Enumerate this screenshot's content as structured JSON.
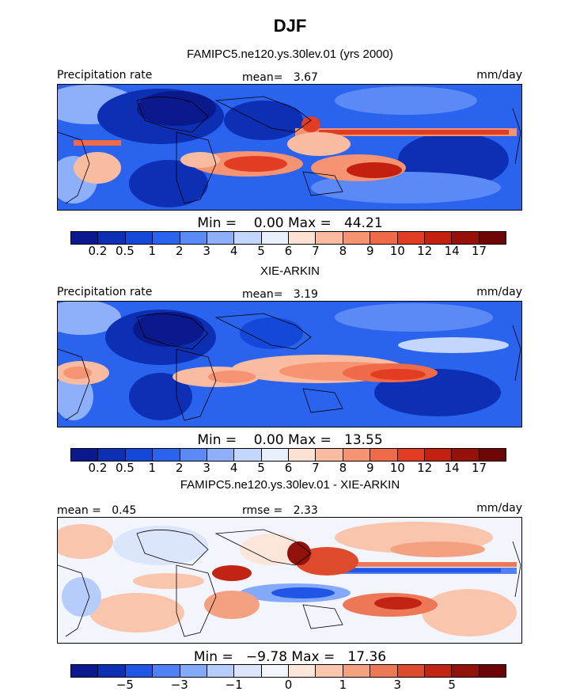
{
  "figure": {
    "title": "DJF"
  },
  "colors": {
    "seq_levels": [
      "#0a1a8c",
      "#0d2fb4",
      "#1448d8",
      "#2a63ee",
      "#5b8af6",
      "#8eb0fb",
      "#c3d6fd",
      "#e8f0fe",
      "#fde2d3",
      "#f9bca0",
      "#f59373",
      "#ee6a48",
      "#e23d22",
      "#c4200f",
      "#95110a",
      "#6e0606"
    ],
    "div_levels": [
      "#0a1a8c",
      "#0d2fb4",
      "#1f56e6",
      "#4f80f5",
      "#85a9fa",
      "#b6cdfc",
      "#dbe6fd",
      "#f2f5fc",
      "#fce6da",
      "#f9c6ad",
      "#f4a182",
      "#ec7858",
      "#de4a2c",
      "#c12412",
      "#92110a",
      "#6b0505"
    ]
  },
  "panels": [
    {
      "title": "FAMIPC5.ne120.ys.30lev.01 (yrs 2000)",
      "left_label": "Precipitation rate",
      "stat_text": "mean=   3.67",
      "units": "mm/day",
      "minmax_text": "Min =    0.00 Max =   44.21",
      "colorbar_ticks": [
        "0.2",
        "0.5",
        "1",
        "2",
        "3",
        "4",
        "5",
        "6",
        "7",
        "8",
        "9",
        "10",
        "12",
        "14",
        "17"
      ]
    },
    {
      "title": "XIE-ARKIN",
      "left_label": "Precipitation rate",
      "stat_text": "mean=   3.19",
      "units": "mm/day",
      "minmax_text": "Min =    0.00 Max =   13.55",
      "colorbar_ticks": [
        "0.2",
        "0.5",
        "1",
        "2",
        "3",
        "4",
        "5",
        "6",
        "7",
        "8",
        "9",
        "10",
        "12",
        "14",
        "17"
      ]
    },
    {
      "title": "FAMIPC5.ne120.ys.30lev.01 - XIE-ARKIN",
      "left_label": "mean =   0.45",
      "stat_text": "rmse =   2.33",
      "units": "mm/day",
      "minmax_text": "Min =   −9.78 Max =   17.36",
      "colorbar_ticks": [
        "",
        "−5",
        "",
        "−3",
        "",
        "−1",
        "",
        "0",
        "",
        "1",
        "",
        "3",
        "",
        "5",
        ""
      ]
    }
  ],
  "chart_data": [
    {
      "type": "heatmap",
      "title": "FAMIPC5.ne120.ys.30lev.01 (yrs 2000)",
      "variable": "Precipitation rate",
      "units": "mm/day",
      "season": "DJF",
      "mean": 3.67,
      "min": 0.0,
      "max": 44.21,
      "contour_levels": [
        0.2,
        0.5,
        1,
        2,
        3,
        4,
        5,
        6,
        7,
        8,
        9,
        10,
        12,
        14,
        17
      ]
    },
    {
      "type": "heatmap",
      "title": "XIE-ARKIN",
      "variable": "Precipitation rate",
      "units": "mm/day",
      "season": "DJF",
      "mean": 3.19,
      "min": 0.0,
      "max": 13.55,
      "contour_levels": [
        0.2,
        0.5,
        1,
        2,
        3,
        4,
        5,
        6,
        7,
        8,
        9,
        10,
        12,
        14,
        17
      ]
    },
    {
      "type": "heatmap",
      "title": "FAMIPC5.ne120.ys.30lev.01 - XIE-ARKIN",
      "units": "mm/day",
      "season": "DJF",
      "mean": 0.45,
      "rmse": 2.33,
      "min": -9.78,
      "max": 17.36,
      "contour_levels": [
        -5,
        -3,
        -1,
        0,
        1,
        3,
        5
      ]
    }
  ]
}
